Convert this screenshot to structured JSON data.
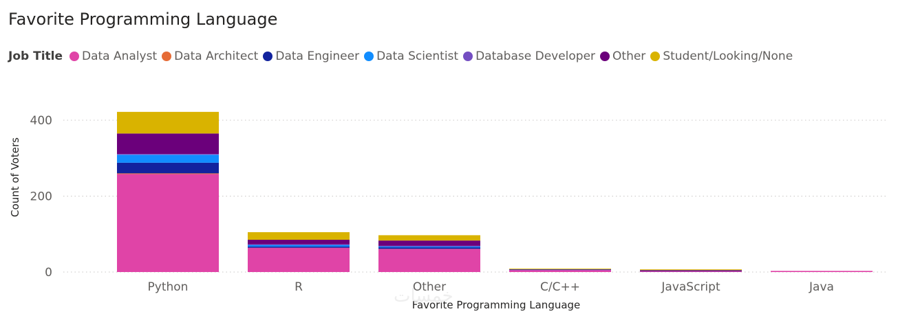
{
  "chart_data": {
    "type": "bar",
    "stacked": true,
    "title": "Favorite Programming Language",
    "legend_title": "Job Title",
    "legend_placement": "top-left",
    "xlabel": "Favorite Programming Language",
    "ylabel": "Count of Voters",
    "categories": [
      "Python",
      "R",
      "Other",
      "C/C++",
      "JavaScript",
      "Java"
    ],
    "yticks": [
      0,
      200,
      400
    ],
    "ylim": [
      0,
      440
    ],
    "grid": true,
    "series": [
      {
        "name": "Data Analyst",
        "color": "#e044a7",
        "values": [
          258,
          64,
          61,
          6,
          3,
          3
        ]
      },
      {
        "name": "Data Architect",
        "color": "#e66c37",
        "values": [
          2,
          0,
          0,
          0,
          0,
          0
        ]
      },
      {
        "name": "Data Engineer",
        "color": "#12239e",
        "values": [
          28,
          3,
          4,
          0,
          1,
          0
        ]
      },
      {
        "name": "Data Scientist",
        "color": "#118dff",
        "values": [
          21,
          5,
          3,
          1,
          0,
          0
        ]
      },
      {
        "name": "Database Developer",
        "color": "#744ec2",
        "values": [
          2,
          1,
          1,
          0,
          0,
          0
        ]
      },
      {
        "name": "Other",
        "color": "#6b007b",
        "values": [
          54,
          12,
          14,
          1,
          1,
          0
        ]
      },
      {
        "name": "Student/Looking/None",
        "color": "#d9b300",
        "values": [
          57,
          20,
          14,
          1,
          2,
          0
        ]
      }
    ]
  },
  "watermark": "خمسات"
}
